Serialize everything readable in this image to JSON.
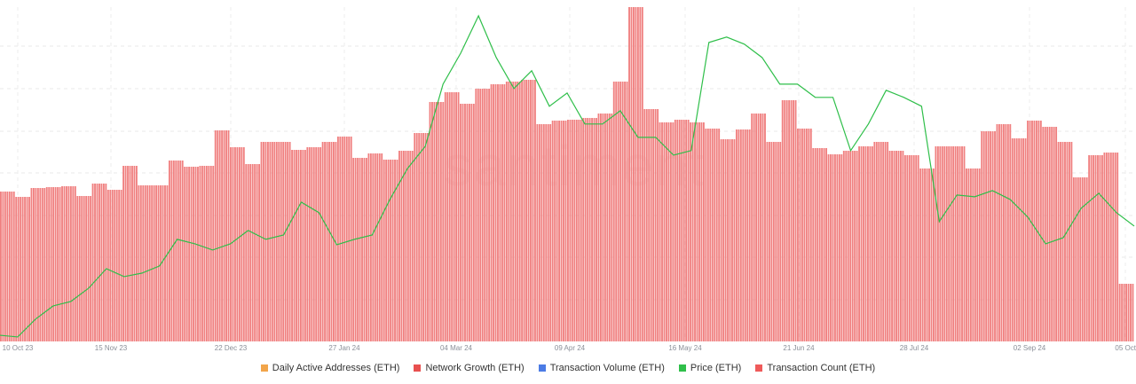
{
  "chart_data": {
    "type": "bar+line",
    "x_range": [
      "10 Oct 23",
      "05 Oct 24"
    ],
    "x_ticks": [
      "10 Oct 23",
      "15 Nov 23",
      "22 Dec 23",
      "27 Jan 24",
      "04 Mar 24",
      "09 Apr 24",
      "16 May 24",
      "21 Jun 24",
      "28 Jul 24",
      "02 Sep 24",
      "05 Oct"
    ],
    "grid": true,
    "legend_placement": "bottom",
    "watermark": "santiment",
    "legend": [
      {
        "name": "Daily Active Addresses (ETH)",
        "color": "#f2a54a"
      },
      {
        "name": "Network Growth (ETH)",
        "color": "#e8504f"
      },
      {
        "name": "Transaction Volume (ETH)",
        "color": "#4b7be5"
      },
      {
        "name": "Price (ETH)",
        "color": "#2fbf4a"
      },
      {
        "name": "Transaction Count (ETH)",
        "color": "#ef5a5a"
      }
    ],
    "series": [
      {
        "name": "Transaction Count (ETH)",
        "type": "bar",
        "color": "#f08080",
        "granularity": "weekly step, daily bars",
        "ylim": [
          0,
          377
        ],
        "values": [
          169,
          163,
          173,
          174,
          175,
          164,
          178,
          171,
          198,
          176,
          176,
          204,
          197,
          198,
          238,
          219,
          200,
          225,
          225,
          216,
          219,
          225,
          231,
          207,
          212,
          205,
          215,
          235,
          270,
          281,
          268,
          285,
          290,
          293,
          295,
          245,
          249,
          250,
          252,
          257,
          293,
          377,
          262,
          247,
          250,
          247,
          240,
          228,
          239,
          257,
          225,
          272,
          240,
          218,
          211,
          215,
          220,
          225,
          215,
          210,
          195,
          220,
          220,
          195,
          237,
          245,
          229,
          249,
          242,
          225,
          185,
          210,
          213,
          65
        ]
      },
      {
        "name": "Price (ETH)",
        "type": "line",
        "color": "#2fbf4a",
        "ylim": [
          1500,
          4100
        ],
        "values": [
          1548,
          1535,
          1673,
          1776,
          1811,
          1914,
          2066,
          2004,
          2031,
          2087,
          2294,
          2259,
          2211,
          2259,
          2363,
          2294,
          2328,
          2583,
          2501,
          2252,
          2294,
          2328,
          2604,
          2846,
          3018,
          3501,
          3743,
          4032,
          3708,
          3467,
          3605,
          3329,
          3432,
          3191,
          3191,
          3294,
          3087,
          3087,
          2949,
          2984,
          3825,
          3867,
          3812,
          3708,
          3501,
          3501,
          3398,
          3398,
          2984,
          3191,
          3453,
          3398,
          3329,
          2432,
          2639,
          2625,
          2673,
          2604,
          2466,
          2259,
          2307,
          2535,
          2652,
          2501,
          2397
        ]
      }
    ]
  }
}
